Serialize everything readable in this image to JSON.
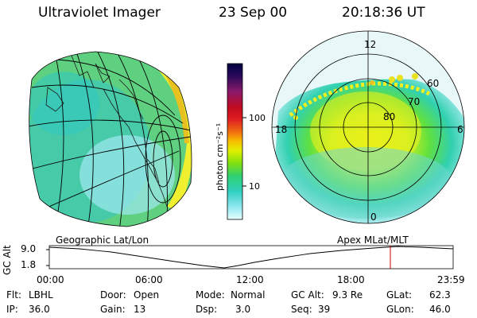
{
  "header": {
    "title": "Ultraviolet Imager",
    "date": "23 Sep 00",
    "time": "20:18:36 UT"
  },
  "colorbar": {
    "unit_label": "photon cm⁻²s⁻¹",
    "ticks": [
      "100",
      "10"
    ],
    "colors": [
      "#000040",
      "#2a0a5a",
      "#8a1a6a",
      "#c00a20",
      "#e02020",
      "#f05010",
      "#f8a000",
      "#f8e000",
      "#c8f000",
      "#80e010",
      "#30d070",
      "#30d0c0",
      "#80e8f0",
      "#e0ffff"
    ]
  },
  "left_panel": {
    "caption": "Geographic Lat/Lon"
  },
  "right_panel": {
    "caption": "Apex MLat/MLT",
    "mlt_labels": {
      "top": "12",
      "left": "18",
      "right": "6",
      "bottom": "0"
    },
    "lat_labels": [
      "60",
      "70",
      "80"
    ]
  },
  "altitude_plot": {
    "ylabel": "GC Alt",
    "yticks": [
      "9.0",
      "1.8"
    ],
    "xticks": [
      "00:00",
      "06:00",
      "12:00",
      "18:00",
      "23:59"
    ],
    "marker_color": "#cc0000"
  },
  "info": {
    "flt_label": "Flt:",
    "flt_value": "LBHL",
    "door_label": "Door:",
    "door_value": "Open",
    "mode_label": "Mode:",
    "mode_value": "Normal",
    "gcalt_label": "GC Alt:",
    "gcalt_value": "9.3 Re",
    "glat_label": "GLat:",
    "glat_value": "62.3",
    "ip_label": "IP:",
    "ip_value": "36.0",
    "gain_label": "Gain:",
    "gain_value": "13",
    "dsp_label": "Dsp:",
    "dsp_value": "3.0",
    "seq_label": "Seq:",
    "seq_value": "39",
    "glon_label": "GLon:",
    "glon_value": "46.0"
  }
}
